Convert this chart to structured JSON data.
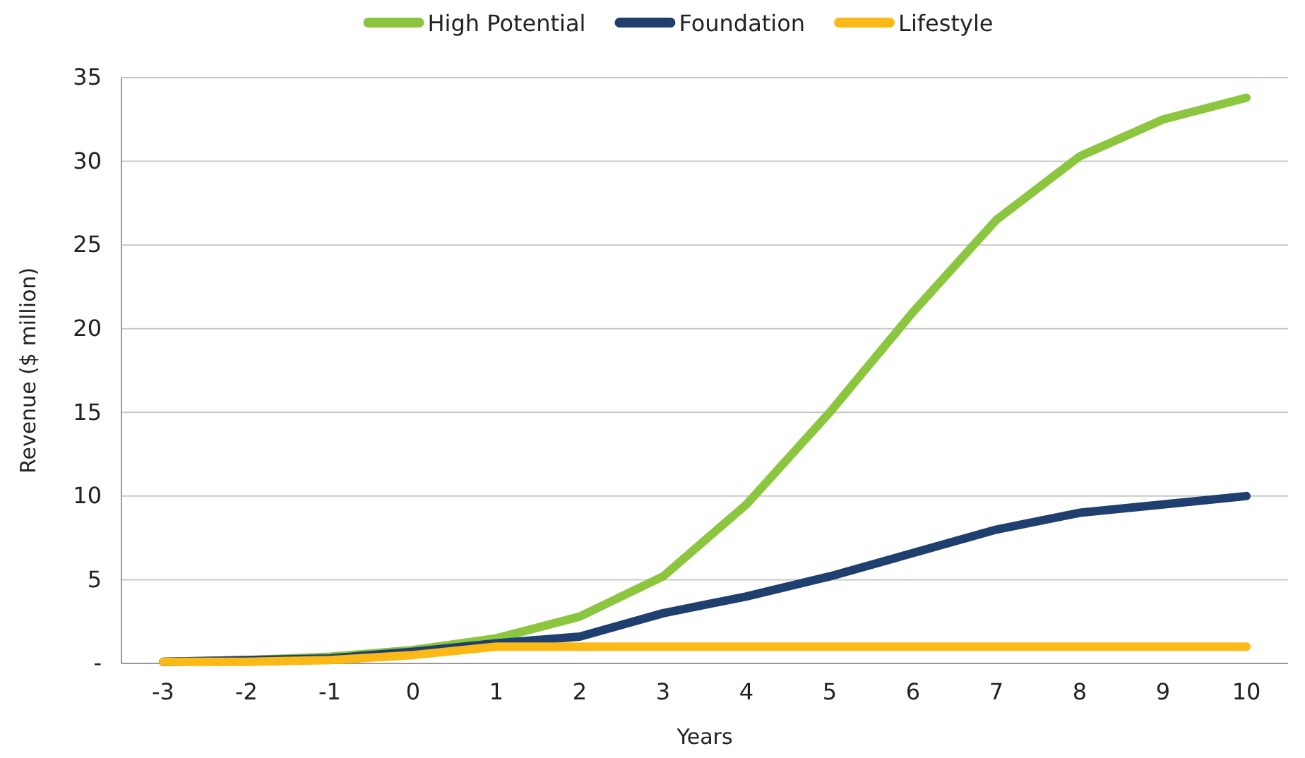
{
  "chart_data": {
    "type": "line",
    "xlabel": "Years",
    "ylabel": "Revenue ($ million)",
    "categories": [
      "-3",
      "-2",
      "-1",
      "0",
      "1",
      "2",
      "3",
      "4",
      "5",
      "6",
      "7",
      "8",
      "9",
      "10"
    ],
    "series": [
      {
        "name": "High Potential",
        "color": "#8cc63f",
        "values": [
          0.1,
          0.2,
          0.4,
          0.8,
          1.5,
          2.8,
          5.2,
          9.5,
          15,
          21,
          26.5,
          30.3,
          32.5,
          33.8
        ]
      },
      {
        "name": "Foundation",
        "color": "#1f3f6e",
        "values": [
          0.1,
          0.2,
          0.3,
          0.7,
          1.2,
          1.6,
          3,
          4,
          5.2,
          6.6,
          8,
          9,
          9.5,
          10
        ]
      },
      {
        "name": "Lifestyle",
        "color": "#fbb917",
        "values": [
          0.1,
          0.1,
          0.2,
          0.5,
          1,
          1,
          1,
          1,
          1,
          1,
          1,
          1,
          1,
          1
        ]
      }
    ],
    "ylim": [
      0,
      35
    ],
    "yticks": [
      {
        "value": 0,
        "label": "-"
      },
      5,
      10,
      15,
      20,
      25,
      30,
      35
    ],
    "grid": "y",
    "legend": "top",
    "marker": "none",
    "line_style": "solid"
  }
}
